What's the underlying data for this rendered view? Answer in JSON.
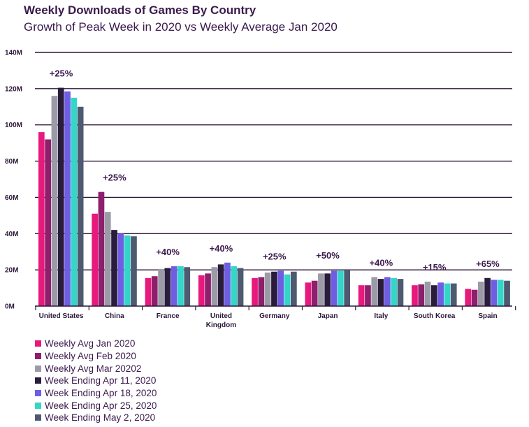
{
  "header": {
    "title": "Weekly Downloads of Games By Country",
    "subtitle": "Growth of Peak Week in 2020 vs Weekly Average Jan 2020"
  },
  "chart_data": {
    "type": "bar",
    "title": "Weekly Downloads of Games By Country",
    "subtitle": "Growth of Peak Week in 2020 vs Weekly Average Jan 2020",
    "xlabel": "",
    "ylabel": "",
    "ylim": [
      0,
      140
    ],
    "y_ticks": [
      "0M",
      "20M",
      "40M",
      "60M",
      "80M",
      "100M",
      "120M",
      "140M"
    ],
    "y_tick_values": [
      0,
      20,
      40,
      60,
      80,
      100,
      120,
      140
    ],
    "grid": true,
    "legend_position": "bottom-left",
    "categories": [
      "United States",
      "China",
      "France",
      "United Kingdom",
      "Germany",
      "Japan",
      "Italy",
      "South Korea",
      "Spain"
    ],
    "category_labels": [
      [
        "United States"
      ],
      [
        "China"
      ],
      [
        "France"
      ],
      [
        "United",
        "Kingdom"
      ],
      [
        "Germany"
      ],
      [
        "Japan"
      ],
      [
        "Italy"
      ],
      [
        "South Korea"
      ],
      [
        "Spain"
      ]
    ],
    "growth_labels": [
      "+25%",
      "+25%",
      "+40%",
      "+40%",
      "+25%",
      "+50%",
      "+40%",
      "+15%",
      "+65%"
    ],
    "series": [
      {
        "name": "Weekly Avg Jan 2020",
        "color": "#e8197d",
        "values": [
          96,
          51,
          15.5,
          17,
          15.5,
          13,
          11.5,
          11.5,
          9.5
        ]
      },
      {
        "name": "Weekly Avg Feb 2020",
        "color": "#8e1f6d",
        "values": [
          92,
          63,
          16.5,
          18,
          16,
          14,
          11.5,
          12,
          9
        ]
      },
      {
        "name": "Weekly Avg Mar 20202",
        "color": "#9b9ba8",
        "values": [
          116,
          52,
          20.5,
          21.5,
          18.5,
          18,
          16,
          13.5,
          13.5
        ]
      },
      {
        "name": "Week Ending Apr 11, 2020",
        "color": "#2a1c3d",
        "values": [
          120.5,
          42,
          21,
          23,
          19,
          18,
          15,
          11.5,
          15.5
        ]
      },
      {
        "name": "Week Ending Apr 18, 2020",
        "color": "#6f5ee3",
        "values": [
          118.5,
          40,
          22,
          24,
          19.5,
          19.5,
          16,
          13,
          14.5
        ]
      },
      {
        "name": "Week Ending Apr 25, 2020",
        "color": "#33d6c9",
        "values": [
          115,
          39,
          22,
          22,
          17.5,
          19.5,
          15.5,
          12.5,
          14.5
        ]
      },
      {
        "name": "Week Ending May 2, 2020",
        "color": "#4d5a70",
        "values": [
          110,
          38.5,
          21.5,
          21,
          19,
          20,
          15,
          12.5,
          14
        ]
      }
    ]
  }
}
